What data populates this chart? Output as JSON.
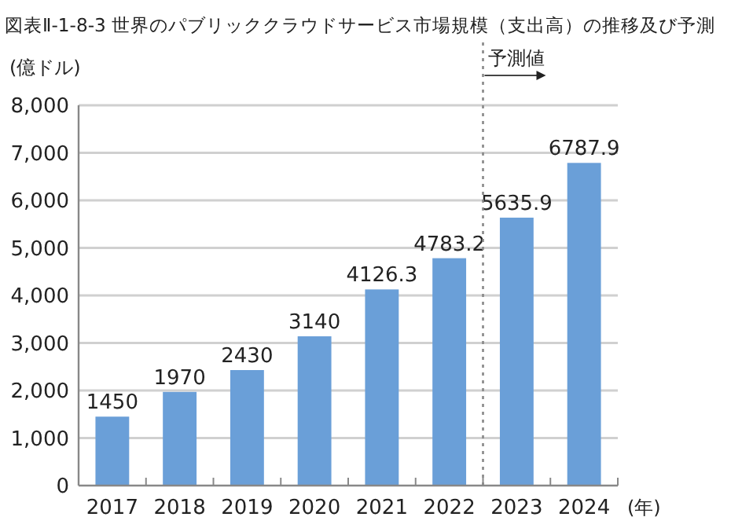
{
  "chart_data": {
    "type": "bar",
    "title": "図表Ⅱ-1-8-3  世界のパブリッククラウドサービス市場規模（支出高）の推移及び予測",
    "xlabel": "(年)",
    "ylabel": "(億ドル)",
    "categories": [
      "2017",
      "2018",
      "2019",
      "2020",
      "2021",
      "2022",
      "2023",
      "2024"
    ],
    "values": [
      1450,
      1970,
      2430,
      3140,
      4126.3,
      4783.2,
      5635.9,
      6787.9
    ],
    "color": "#6a9fd8",
    "data_labels": true,
    "grid": "y",
    "ylim": [
      0,
      8000
    ],
    "yticks": [
      0,
      {
        "value": 1000,
        "label": "1,000"
      },
      {
        "value": 2000,
        "label": "2,000"
      },
      {
        "value": 3000,
        "label": "3,000"
      },
      {
        "value": 4000,
        "label": "4,000"
      },
      {
        "value": 5000,
        "label": "5,000"
      },
      {
        "value": 6000,
        "label": "6,000"
      },
      {
        "value": 7000,
        "label": "7,000"
      },
      {
        "value": 8000,
        "label": "8,000"
      }
    ],
    "ref_lines": [
      {
        "axis": "x",
        "value": "2023",
        "label": "予測値",
        "line_style": "dotted",
        "color": "#888888"
      }
    ]
  }
}
